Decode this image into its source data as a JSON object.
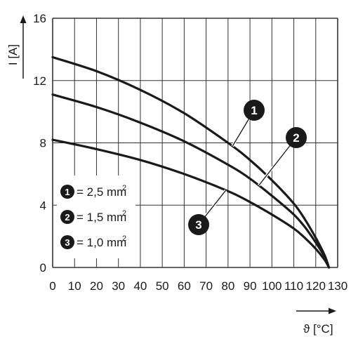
{
  "chart_data": {
    "type": "line",
    "xlabel": "ϑ [°C]",
    "ylabel": "I [A]",
    "xlim": [
      0,
      130
    ],
    "ylim": [
      0,
      16
    ],
    "x_ticks": [
      0,
      10,
      20,
      30,
      40,
      50,
      60,
      70,
      80,
      90,
      100,
      110,
      120,
      130
    ],
    "y_ticks": [
      0,
      4,
      8,
      12,
      16
    ],
    "grid": true,
    "legend_position": "bottom-left",
    "series": [
      {
        "id": "1",
        "legend": "= 2,5 mm",
        "unit_exponent": "2",
        "points": [
          [
            0,
            13.5
          ],
          [
            20,
            12.6
          ],
          [
            40,
            11.4
          ],
          [
            60,
            9.9
          ],
          [
            80,
            8.0
          ],
          [
            90,
            6.9
          ],
          [
            100,
            5.6
          ],
          [
            110,
            4.1
          ],
          [
            115,
            3.1
          ],
          [
            120,
            1.9
          ],
          [
            124,
            0.8
          ],
          [
            126,
            0
          ]
        ]
      },
      {
        "id": "2",
        "legend": "= 1,5 mm",
        "unit_exponent": "2",
        "points": [
          [
            0,
            11.1
          ],
          [
            20,
            10.3
          ],
          [
            40,
            9.3
          ],
          [
            60,
            8.1
          ],
          [
            80,
            6.6
          ],
          [
            90,
            5.7
          ],
          [
            100,
            4.6
          ],
          [
            110,
            3.4
          ],
          [
            115,
            2.6
          ],
          [
            120,
            1.6
          ],
          [
            124,
            0.7
          ],
          [
            126,
            0
          ]
        ]
      },
      {
        "id": "3",
        "legend": "= 1,0 mm",
        "unit_exponent": "2",
        "points": [
          [
            0,
            8.2
          ],
          [
            20,
            7.6
          ],
          [
            40,
            6.9
          ],
          [
            60,
            6.0
          ],
          [
            80,
            4.9
          ],
          [
            90,
            4.2
          ],
          [
            100,
            3.4
          ],
          [
            110,
            2.5
          ],
          [
            115,
            1.9
          ],
          [
            120,
            1.2
          ],
          [
            124,
            0.5
          ],
          [
            126,
            0
          ]
        ]
      }
    ]
  }
}
